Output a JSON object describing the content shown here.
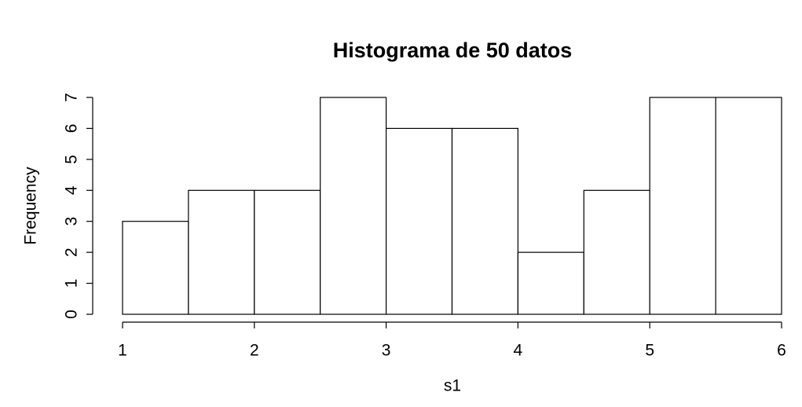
{
  "chart_data": {
    "type": "histogram",
    "title": "Histograma de 50 datos",
    "xlabel": "s1",
    "ylabel": "Frequency",
    "bins": [
      1,
      1.5,
      2,
      2.5,
      3,
      3.5,
      4,
      4.5,
      5,
      5.5,
      6
    ],
    "values": [
      3,
      4,
      4,
      7,
      6,
      6,
      2,
      4,
      7,
      7
    ],
    "color": "#ffffff",
    "xlim": [
      1,
      6
    ],
    "xticks": [
      1,
      2,
      3,
      4,
      5,
      6
    ],
    "ylim": [
      0,
      7
    ],
    "yticks": [
      0,
      1,
      2,
      3,
      4,
      5,
      6,
      7
    ]
  }
}
